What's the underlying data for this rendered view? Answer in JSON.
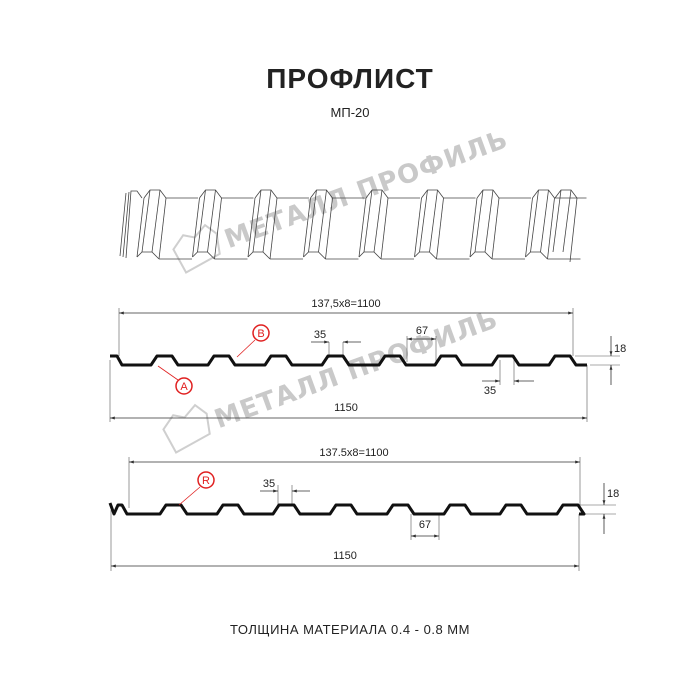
{
  "title": "ПРОФЛИСТ",
  "subtitle": "МП-20",
  "watermark": "МЕТАЛЛ ПРОФИЛЬ",
  "profile_1": {
    "pitch_label": "137,5x8=1100",
    "width_label": "1150",
    "rib_top_label": "35",
    "rib_bottom_label": "35",
    "gap_label": "67",
    "height_label": "18",
    "marker_a": "A",
    "marker_b": "B"
  },
  "profile_2": {
    "pitch_label": "137.5x8=1100",
    "width_label": "1150",
    "rib_top_label": "35",
    "gap_label": "67",
    "height_label": "18",
    "marker_r": "R"
  },
  "footer": "ТОЛЩИНА МАТЕРИАЛА 0.4 - 0.8 ММ",
  "colors": {
    "profile": "#111111",
    "marker": "#e02020",
    "watermark": "#c9c9c9"
  }
}
